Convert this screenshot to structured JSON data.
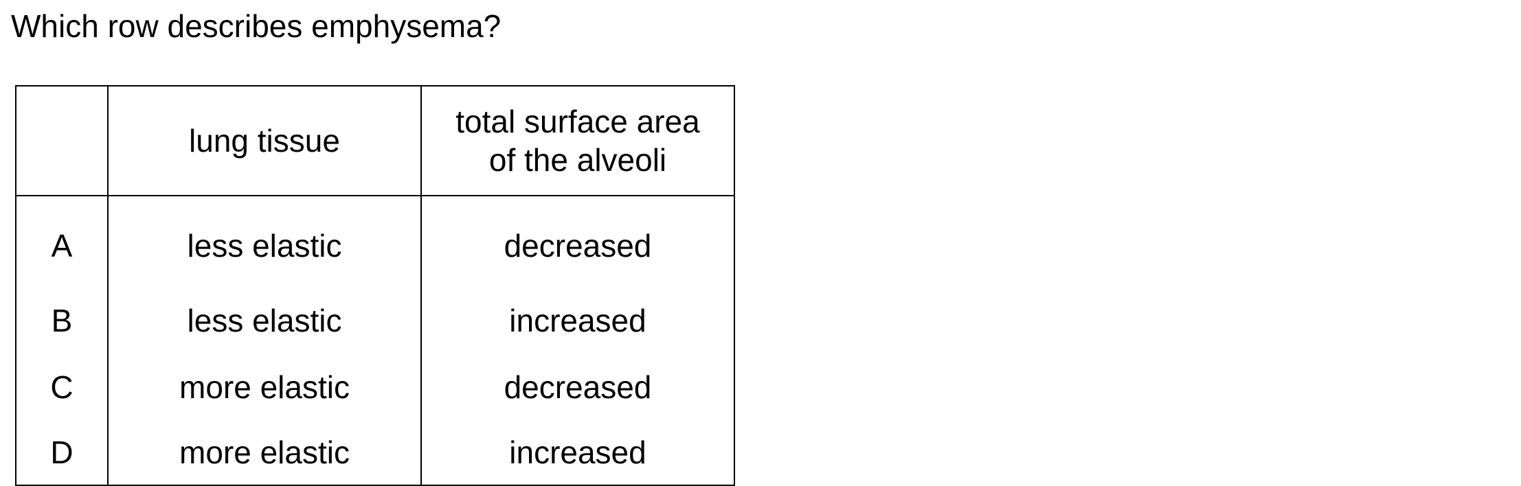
{
  "question": "Which row describes emphysema?",
  "table": {
    "headers": {
      "key": "",
      "lung_tissue": "lung tissue",
      "surface_area_line1": "total surface area",
      "surface_area_line2": "of the alveoli"
    },
    "rows": [
      {
        "key": "A",
        "lung_tissue": "less elastic",
        "surface_area": "decreased"
      },
      {
        "key": "B",
        "lung_tissue": "less elastic",
        "surface_area": "increased"
      },
      {
        "key": "C",
        "lung_tissue": "more elastic",
        "surface_area": "decreased"
      },
      {
        "key": "D",
        "lung_tissue": "more elastic",
        "surface_area": "increased"
      }
    ]
  }
}
